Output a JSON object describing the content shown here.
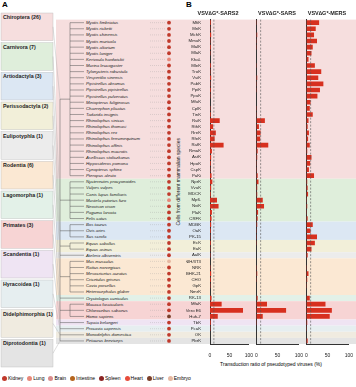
{
  "figure": {
    "panel_labels": [
      "A",
      "B"
    ],
    "y_axis_title": "Cells from different mammalian species",
    "x_axis_title": "Transduction ratio of pseudotyped viruses (%)",
    "legend": [
      {
        "label": "Kidney",
        "color": "#c0392b"
      },
      {
        "label": "Lung",
        "color": "#e8887a"
      },
      {
        "label": "Brain",
        "color": "#d98c8c"
      },
      {
        "label": "Intestine",
        "color": "#b5651d"
      },
      {
        "label": "Spleen",
        "color": "#8b2323"
      },
      {
        "label": "Heart",
        "color": "#e74c3c"
      },
      {
        "label": "Liver",
        "color": "#7b3f2a"
      },
      {
        "label": "Embryo",
        "color": "#e6b8a2"
      }
    ]
  },
  "panel_a": {
    "orders": [
      {
        "label": "Chiroptera (26)",
        "color": "#f6dede",
        "species": [
          {
            "name": "Myotis fimbriatus",
            "tissue": "Kidney"
          },
          {
            "name": "Myotis ricketti",
            "tissue": "Kidney"
          },
          {
            "name": "Myotis chinensis",
            "tissue": "Kidney"
          },
          {
            "name": "Myotis muricola",
            "tissue": "Kidney"
          },
          {
            "name": "Myotis altarium",
            "tissue": "Kidney"
          },
          {
            "name": "Myotis laniger",
            "tissue": "Kidney"
          },
          {
            "name": "Kerivoula hardwickii",
            "tissue": "Lung"
          },
          {
            "name": "Murina leucogaster",
            "tissue": "Kidney"
          },
          {
            "name": "Tylonycteris robustula",
            "tissue": "Kidney"
          },
          {
            "name": "Vespertilio sinensis",
            "tissue": "Kidney"
          },
          {
            "name": "Pipistrellus abramus",
            "tissue": "Kidney"
          },
          {
            "name": "Pipistrellus pipistrellus",
            "tissue": "Kidney"
          },
          {
            "name": "Pipistrellus pulveratus",
            "tissue": "Kidney"
          },
          {
            "name": "Miniopterus fuliginosus",
            "tissue": "Kidney"
          },
          {
            "name": "Chaerephon plicatus",
            "tissue": "Kidney"
          },
          {
            "name": "Tadarida insignis",
            "tissue": "Kidney"
          },
          {
            "name": "Rhinolophus sinicus",
            "tissue": "Kidney"
          },
          {
            "name": "Rhinolophus thomasi",
            "tissue": "Kidney"
          },
          {
            "name": "Rhinolophus rex",
            "tissue": "Kidney"
          },
          {
            "name": "Rhinolophus ferrumequinum",
            "tissue": "Kidney"
          },
          {
            "name": "Rhinolophus affinis",
            "tissue": "Kidney"
          },
          {
            "name": "Rhinolophus macrotis",
            "tissue": "Kidney"
          },
          {
            "name": "Aselliscus stoliczkanus",
            "tissue": "Kidney"
          },
          {
            "name": "Hipposideros pomona",
            "tissue": "Kidney"
          },
          {
            "name": "Cynopterus sphinx",
            "tissue": "Kidney"
          },
          {
            "name": "Pteropus alecto",
            "tissue": "Kidney"
          }
        ]
      },
      {
        "label": "Carnivora (7)",
        "color": "#dfeedb",
        "species": [
          {
            "name": "Nyctereutes procyonoides",
            "tissue": "Kidney"
          },
          {
            "name": "Vulpes vulpes",
            "tissue": "Kidney"
          },
          {
            "name": "Canis lupus familiaris",
            "tissue": "Kidney"
          },
          {
            "name": "Mustela putorius furo",
            "tissue": "Lung"
          },
          {
            "name": "Neovison vison",
            "tissue": "Kidney"
          },
          {
            "name": "Paguma larvata",
            "tissue": "Kidney"
          },
          {
            "name": "Felis catus",
            "tissue": "Kidney"
          }
        ]
      },
      {
        "label": "Artiodactyla (3)",
        "color": "#dce7f3",
        "species": [
          {
            "name": "Bos taurus",
            "tissue": "Kidney"
          },
          {
            "name": "Ovis aries",
            "tissue": "Kidney"
          },
          {
            "name": "Sus scrofa",
            "tissue": "Kidney"
          }
        ]
      },
      {
        "label": "Perissodactyla (2)",
        "color": "#f2efd9",
        "species": [
          {
            "name": "Equus caballus",
            "tissue": "Kidney"
          },
          {
            "name": "Equus asinus",
            "tissue": "Kidney"
          }
        ]
      },
      {
        "label": "Eulipotyphla (1)",
        "color": "#ececec",
        "species": [
          {
            "name": "Atelerix albiventris",
            "tissue": "Kidney"
          }
        ]
      },
      {
        "label": "Rodentia (6)",
        "color": "#fbe8d3",
        "species": [
          {
            "name": "Mus musculus",
            "tissue": "Embryo"
          },
          {
            "name": "Rattus norvegicus",
            "tissue": "Kidney"
          },
          {
            "name": "Mesocricetus auratus",
            "tissue": "Kidney"
          },
          {
            "name": "Cricetulus griseus",
            "tissue": "Kidney"
          },
          {
            "name": "Cavia porcellus",
            "tissue": "Kidney"
          },
          {
            "name": "Heterocephalus glaber",
            "tissue": "Kidney"
          }
        ]
      },
      {
        "label": "Lagomorpha (1)",
        "color": "#e3f1e8",
        "species": [
          {
            "name": "Oryctolagus cuniculus",
            "tissue": "Kidney"
          }
        ]
      },
      {
        "label": "Primates (3)",
        "color": "#f7d4d4",
        "species": [
          {
            "name": "Macaca fascicularis",
            "tissue": "Kidney"
          },
          {
            "name": "Chlorocebus sabaeus",
            "tissue": "Kidney"
          },
          {
            "name": "Homo sapiens",
            "tissue": "Liver"
          }
        ]
      },
      {
        "label": "Scandentia (1)",
        "color": "#efe4f3",
        "species": [
          {
            "name": "Tupaia belangeri",
            "tissue": "Kidney"
          }
        ]
      },
      {
        "label": "Hyracoidea (1)",
        "color": "#e6eef0",
        "species": [
          {
            "name": "Procavia capensis",
            "tissue": "Kidney"
          }
        ]
      },
      {
        "label": "Didelphimorphia (1)",
        "color": "#f0ebe0",
        "species": [
          {
            "name": "Monodelphis domestica",
            "tissue": "Kidney"
          }
        ]
      },
      {
        "label": "Diprotodontia (1)",
        "color": "#e4e4e4",
        "species": [
          {
            "name": "Petaurus breviceps",
            "tissue": "Kidney"
          }
        ]
      }
    ]
  },
  "chart_data": [
    {
      "type": "bar",
      "orientation": "horizontal",
      "title": "VSV∆G*-SARS2",
      "categories": [
        "MfiK",
        "MriK",
        "MchK",
        "MmuK",
        "MalK",
        "MlaK",
        "KhaL",
        "MleK",
        "TroK",
        "VsiK",
        "PabK",
        "PpiK",
        "PpuK",
        "MfuK",
        "CplK",
        "TinK",
        "RsiK",
        "RthK",
        "RreK",
        "RfeK",
        "RafK",
        "RmaK",
        "AstK",
        "HpoK",
        "CspK",
        "PaKi",
        "NprK",
        "VvuK",
        "MDCK",
        "MpfL",
        "NviK",
        "PlaK",
        "CRFK",
        "MDBK",
        "OaK",
        "PK-15",
        "EcK",
        "EaK",
        "AalK",
        "NIH/3T3",
        "NRK",
        "BHK-21",
        "CHO",
        "GpK",
        "NmrK",
        "RK-13",
        "MfaK",
        "Vero E6",
        "Huh-7",
        "TbK",
        "PcaK",
        "OK",
        "PbrK"
      ],
      "values": [
        2,
        1,
        3,
        1,
        2,
        1,
        0,
        2,
        1,
        3,
        1,
        2,
        1,
        0,
        1,
        2,
        25,
        8,
        15,
        12,
        35,
        5,
        3,
        2,
        1,
        4,
        6,
        3,
        2,
        18,
        22,
        5,
        4,
        3,
        2,
        1,
        2,
        1,
        1,
        0,
        1,
        3,
        2,
        1,
        0,
        4,
        30,
        85,
        20,
        2,
        1,
        0,
        0
      ],
      "color": "#d7301f",
      "xlim": [
        0,
        100
      ],
      "xticks": [
        0,
        50,
        100
      ],
      "reference_line": 10,
      "grid": false,
      "tick_labels": true
    },
    {
      "type": "bar",
      "orientation": "horizontal",
      "title": "VSV∆G*-SARS",
      "categories": [
        "MfiK",
        "MriK",
        "MchK",
        "MmuK",
        "MalK",
        "MlaK",
        "KhaL",
        "MleK",
        "TroK",
        "VsiK",
        "PabK",
        "PpiK",
        "PpuK",
        "MfuK",
        "CplK",
        "TinK",
        "RsiK",
        "RthK",
        "RreK",
        "RfeK",
        "RafK",
        "RmaK",
        "AstK",
        "HpoK",
        "CspK",
        "PaKi",
        "NprK",
        "VvuK",
        "MDCK",
        "MpfL",
        "NviK",
        "PlaK",
        "CRFK",
        "MDBK",
        "OaK",
        "PK-15",
        "EcK",
        "EaK",
        "AalK",
        "NIH/3T3",
        "NRK",
        "BHK-21",
        "CHO",
        "GpK",
        "NmrK",
        "RK-13",
        "MfaK",
        "Vero E6",
        "Huh-7",
        "TbK",
        "PcaK",
        "OK",
        "PbrK"
      ],
      "values": [
        1,
        0,
        2,
        1,
        1,
        0,
        0,
        1,
        0,
        2,
        1,
        1,
        0,
        0,
        1,
        1,
        20,
        6,
        10,
        9,
        28,
        3,
        2,
        1,
        1,
        3,
        5,
        2,
        2,
        15,
        18,
        4,
        3,
        2,
        1,
        1,
        1,
        0,
        0,
        0,
        1,
        2,
        1,
        0,
        0,
        3,
        25,
        70,
        15,
        1,
        0,
        0,
        0
      ],
      "color": "#d7301f",
      "xlim": [
        0,
        100
      ],
      "xticks": [
        0,
        50,
        100
      ],
      "reference_line": 10,
      "grid": false,
      "tick_labels": "x"
    },
    {
      "type": "bar",
      "orientation": "horizontal",
      "title": "VSV∆G*-MERS",
      "categories": [
        "MfiK",
        "MriK",
        "MchK",
        "MmuK",
        "MalK",
        "MlaK",
        "KhaL",
        "MleK",
        "TroK",
        "VsiK",
        "PabK",
        "PpiK",
        "PpuK",
        "MfuK",
        "CplK",
        "TinK",
        "RsiK",
        "RthK",
        "RreK",
        "RfeK",
        "RafK",
        "RmaK",
        "AstK",
        "HpoK",
        "CspK",
        "PaKi",
        "NprK",
        "VvuK",
        "MDCK",
        "MpfL",
        "NviK",
        "PlaK",
        "CRFK",
        "MDBK",
        "OaK",
        "PK-15",
        "EcK",
        "EaK",
        "AalK",
        "NIH/3T3",
        "NRK",
        "BHK-21",
        "CHO",
        "GpK",
        "NmrK",
        "RK-13",
        "MfaK",
        "Vero E6",
        "Huh-7",
        "TbK",
        "PcaK",
        "OK",
        "PbrK"
      ],
      "values": [
        30,
        22,
        18,
        25,
        15,
        12,
        5,
        20,
        35,
        28,
        40,
        32,
        26,
        10,
        8,
        15,
        5,
        3,
        6,
        4,
        8,
        2,
        12,
        9,
        6,
        18,
        2,
        3,
        4,
        1,
        2,
        1,
        3,
        15,
        10,
        25,
        20,
        12,
        3,
        0,
        1,
        5,
        2,
        1,
        0,
        8,
        45,
        60,
        55,
        2,
        1,
        0,
        3
      ],
      "color": "#d7301f",
      "xlim": [
        0,
        100
      ],
      "xticks": [
        0,
        50,
        100
      ],
      "reference_line": 10,
      "grid": false,
      "tick_labels": "x"
    }
  ]
}
